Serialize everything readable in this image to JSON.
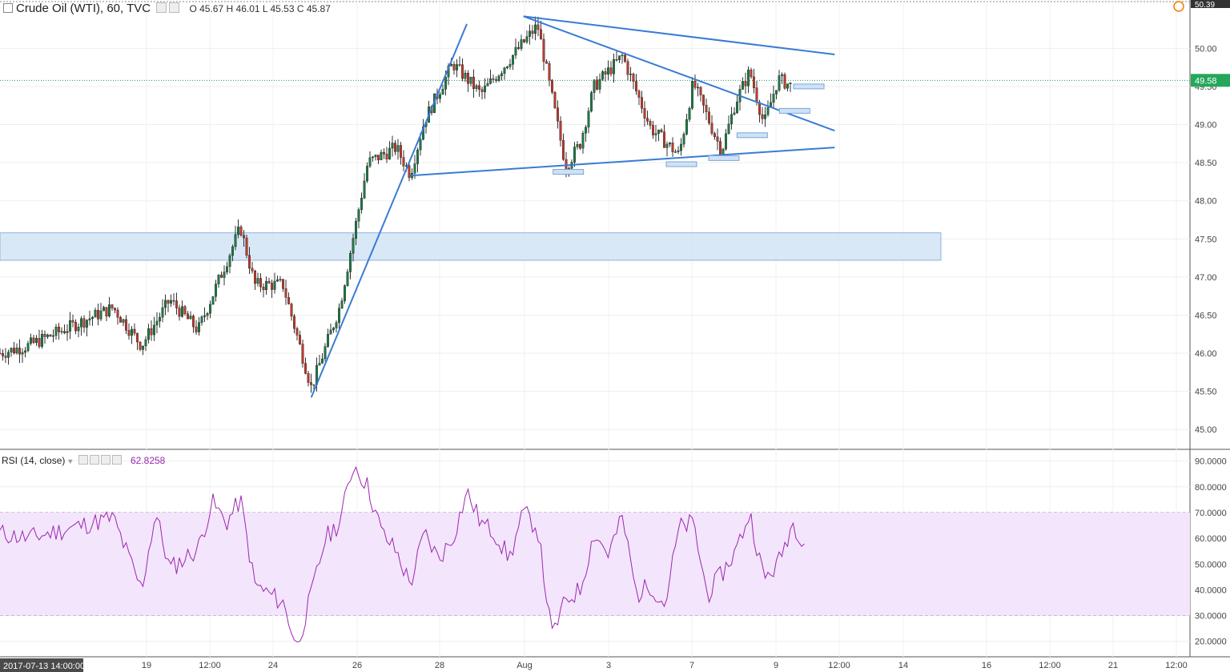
{
  "header": {
    "symbol": "Crude Oil (WTI), 60, TVC",
    "open_label": "O",
    "open": "45.67",
    "high_label": "H",
    "high": "46.01",
    "low_label": "L",
    "low": "45.53",
    "close_label": "C",
    "close": "45.87"
  },
  "rsi_header": {
    "label": "RSI (14, close)",
    "value": "62.8258"
  },
  "cursor_time_label": "2017-07-13 14:00:00",
  "colors": {
    "up": "#1e7b45",
    "down": "#c0392b",
    "trendline": "#3a7bd5",
    "zone": "#cfe2f5",
    "rsi_line": "#9c27b0",
    "rsi_band": "#f3e5fb"
  },
  "chart_data": [
    {
      "type": "candlestick",
      "title": "",
      "yaxis_ticks": [
        "45.00",
        "45.50",
        "46.00",
        "46.50",
        "47.00",
        "47.50",
        "48.00",
        "48.50",
        "49.00",
        "49.50",
        "50.00"
      ],
      "ylim": [
        44.75,
        50.55
      ],
      "xaxis_ticks": [
        "19",
        "12:00",
        "24",
        "26",
        "28",
        "Aug",
        "3",
        "7",
        "9",
        "12:00",
        "14",
        "16",
        "12:00",
        "21",
        "12:00"
      ],
      "last_price": "49.58",
      "top_price": "50.39",
      "key_points": [
        {
          "t": "Jul 13",
          "price": 46.0
        },
        {
          "t": "Jul 14",
          "price": 46.1
        },
        {
          "t": "Jul 17",
          "price": 46.6
        },
        {
          "t": "Jul 18",
          "price": 46.1
        },
        {
          "t": "Jul 19",
          "price": 46.7
        },
        {
          "t": "Jul 20",
          "price": 46.3
        },
        {
          "t": "Jul 21",
          "price": 47.2
        },
        {
          "t": "Jul 21 12:00",
          "price": 47.65
        },
        {
          "t": "Jul 22",
          "price": 46.9
        },
        {
          "t": "Jul 23",
          "price": 46.9
        },
        {
          "t": "Jul 24",
          "price": 45.55
        },
        {
          "t": "Jul 25",
          "price": 46.6
        },
        {
          "t": "Jul 26",
          "price": 48.5
        },
        {
          "t": "Jul 27",
          "price": 48.7
        },
        {
          "t": "Jul 27 12:00",
          "price": 48.35
        },
        {
          "t": "Jul 28",
          "price": 49.05
        },
        {
          "t": "Jul 29",
          "price": 49.8
        },
        {
          "t": "Jul 30",
          "price": 49.4
        },
        {
          "t": "Aug 1",
          "price": 50.3
        },
        {
          "t": "Aug 2",
          "price": 48.45
        },
        {
          "t": "Aug 2 12:00",
          "price": 48.75
        },
        {
          "t": "Aug 3",
          "price": 49.5
        },
        {
          "t": "Aug 4",
          "price": 49.9
        },
        {
          "t": "Aug 5",
          "price": 48.95
        },
        {
          "t": "Aug 6",
          "price": 48.6
        },
        {
          "t": "Aug 6 12:00",
          "price": 49.55
        },
        {
          "t": "Aug 7",
          "price": 49.1
        },
        {
          "t": "Aug 7 12:00",
          "price": 48.65
        },
        {
          "t": "Aug 8",
          "price": 49.3
        },
        {
          "t": "Aug 8 12:00",
          "price": 49.7
        },
        {
          "t": "Aug 9",
          "price": 49.0
        },
        {
          "t": "Aug 9 12:00",
          "price": 49.6
        },
        {
          "t": "Aug 10",
          "price": 49.5
        }
      ],
      "annotations": {
        "resistance_zone": [
          47.22,
          47.58
        ],
        "trendlines": [
          {
            "from": [
              "Jul 24",
              45.42
            ],
            "to": [
              "Jul 29 12:00",
              50.32
            ]
          },
          {
            "from": [
              "Jul 31 12:00",
              50.42
            ],
            "to": [
              "Aug 11 12:00",
              49.92
            ]
          },
          {
            "from": [
              "Jul 31 12:00",
              50.42
            ],
            "to": [
              "Aug 11 12:00",
              48.92
            ]
          },
          {
            "from": [
              "Jul 27 12:00",
              48.33
            ],
            "to": [
              "Aug 11 12:00",
              48.7
            ]
          }
        ]
      }
    },
    {
      "type": "line",
      "title": "RSI (14, close)",
      "yaxis_ticks": [
        "20.0000",
        "30.0000",
        "40.0000",
        "50.0000",
        "60.0000",
        "70.0000",
        "80.0000",
        "90.0000"
      ],
      "ylim": [
        14,
        93
      ],
      "band": [
        30,
        70
      ],
      "key_points": [
        {
          "t": "Jul 13",
          "rsi": 62
        },
        {
          "t": "Jul 14",
          "rsi": 60
        },
        {
          "t": "Jul 17",
          "rsi": 68
        },
        {
          "t": "Jul 18",
          "rsi": 40
        },
        {
          "t": "Jul 18 12:00",
          "rsi": 70
        },
        {
          "t": "Jul 19",
          "rsi": 48
        },
        {
          "t": "Jul 20",
          "rsi": 56
        },
        {
          "t": "Jul 20 12:00",
          "rsi": 74
        },
        {
          "t": "Jul 21",
          "rsi": 66
        },
        {
          "t": "Jul 21 12:00",
          "rsi": 75
        },
        {
          "t": "Jul 22",
          "rsi": 42
        },
        {
          "t": "Jul 23",
          "rsi": 35
        },
        {
          "t": "Jul 23 12:00",
          "rsi": 18
        },
        {
          "t": "Jul 24",
          "rsi": 38
        },
        {
          "t": "Jul 24 12:00",
          "rsi": 60
        },
        {
          "t": "Jul 25",
          "rsi": 66
        },
        {
          "t": "Jul 25 12:00",
          "rsi": 89
        },
        {
          "t": "Jul 26",
          "rsi": 80
        },
        {
          "t": "Jul 26 12:00",
          "rsi": 62
        },
        {
          "t": "Jul 27",
          "rsi": 55
        },
        {
          "t": "Jul 27 12:00",
          "rsi": 42
        },
        {
          "t": "Jul 28",
          "rsi": 62
        },
        {
          "t": "Jul 28 12:00",
          "rsi": 52
        },
        {
          "t": "Jul 29",
          "rsi": 60
        },
        {
          "t": "Jul 29 12:00",
          "rsi": 78
        },
        {
          "t": "Jul 30",
          "rsi": 66
        },
        {
          "t": "Jul 30 12:00",
          "rsi": 62
        },
        {
          "t": "Jul 31",
          "rsi": 52
        },
        {
          "t": "Jul 31 12:00",
          "rsi": 70
        },
        {
          "t": "Aug 1",
          "rsi": 64
        },
        {
          "t": "Aug 1 12:00",
          "rsi": 22
        },
        {
          "t": "Aug 2",
          "rsi": 36
        },
        {
          "t": "Aug 2 12:00",
          "rsi": 40
        },
        {
          "t": "Aug 3",
          "rsi": 62
        },
        {
          "t": "Aug 3 12:00",
          "rsi": 54
        },
        {
          "t": "Aug 4",
          "rsi": 68
        },
        {
          "t": "Aug 4 12:00",
          "rsi": 38
        },
        {
          "t": "Aug 5",
          "rsi": 42
        },
        {
          "t": "Aug 5 12:00",
          "rsi": 34
        },
        {
          "t": "Aug 6",
          "rsi": 64
        },
        {
          "t": "Aug 6 12:00",
          "rsi": 66
        },
        {
          "t": "Aug 7",
          "rsi": 38
        },
        {
          "t": "Aug 7 12:00",
          "rsi": 46
        },
        {
          "t": "Aug 8",
          "rsi": 55
        },
        {
          "t": "Aug 8 12:00",
          "rsi": 70
        },
        {
          "t": "Aug 9",
          "rsi": 44
        },
        {
          "t": "Aug 9 12:00",
          "rsi": 50
        },
        {
          "t": "Aug 10",
          "rsi": 66
        },
        {
          "t": "Aug 10 12:00",
          "rsi": 58
        }
      ]
    }
  ]
}
